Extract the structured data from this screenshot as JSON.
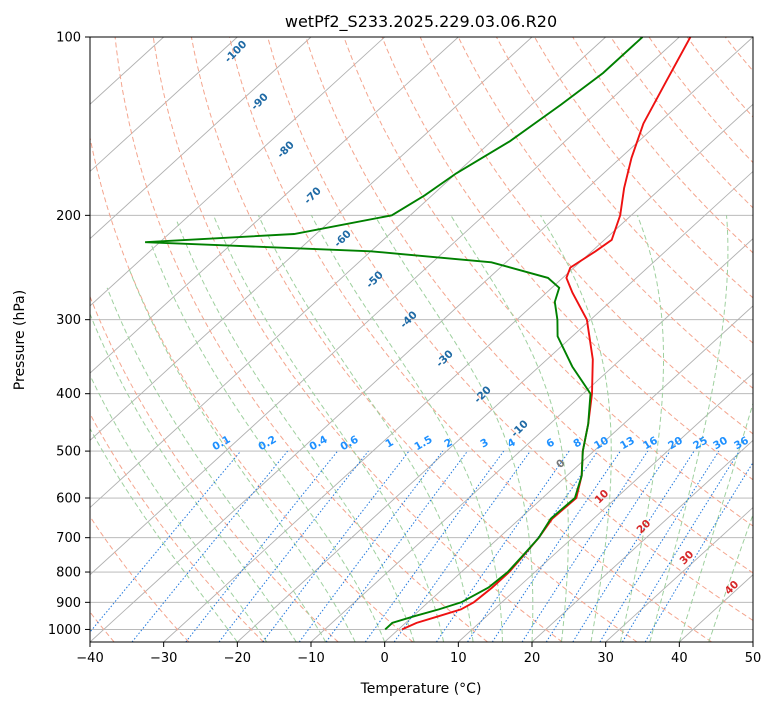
{
  "chart_data": {
    "type": "skew-t",
    "title": "wetPf2_S233.2025.229.03.06.R20",
    "xlabel": "Temperature (°C)",
    "ylabel": "Pressure (hPa)",
    "xlim": [
      -40,
      50
    ],
    "ylim": [
      1050,
      100
    ],
    "x_ticks": [
      -40,
      -30,
      -20,
      -10,
      0,
      10,
      20,
      30,
      40,
      50
    ],
    "y_ticks": [
      100,
      200,
      300,
      400,
      500,
      600,
      700,
      800,
      900,
      1000
    ],
    "x_tick_labels": [
      "−40",
      "−30",
      "−20",
      "−10",
      "0",
      "10",
      "20",
      "30",
      "40",
      "50"
    ],
    "y_tick_labels": [
      "100",
      "200",
      "300",
      "400",
      "500",
      "600",
      "700",
      "800",
      "900",
      "1000"
    ],
    "series": [
      {
        "name": "temperature",
        "color": "#ee1111",
        "points": [
          [
            1000,
            0.5
          ],
          [
            975,
            1.5
          ],
          [
            950,
            3.5
          ],
          [
            925,
            5.5
          ],
          [
            900,
            6.2
          ],
          [
            850,
            6.5
          ],
          [
            800,
            6.5
          ],
          [
            750,
            6.0
          ],
          [
            700,
            5.4
          ],
          [
            650,
            4.4
          ],
          [
            600,
            4.6
          ],
          [
            550,
            2.0
          ],
          [
            500,
            -1.5
          ],
          [
            450,
            -4.8
          ],
          [
            400,
            -8.8
          ],
          [
            350,
            -13.8
          ],
          [
            300,
            -20.5
          ],
          [
            270,
            -26.5
          ],
          [
            255,
            -29.5
          ],
          [
            245,
            -30.5
          ],
          [
            230,
            -29.5
          ],
          [
            220,
            -29.0
          ],
          [
            200,
            -31.5
          ],
          [
            180,
            -35.0
          ],
          [
            160,
            -38.5
          ],
          [
            140,
            -42.0
          ],
          [
            120,
            -45.0
          ],
          [
            100,
            -48.5
          ]
        ]
      },
      {
        "name": "dewpoint",
        "color": "#008000",
        "points": [
          [
            1000,
            -1.8
          ],
          [
            975,
            -1.8
          ],
          [
            950,
            0.2
          ],
          [
            925,
            2.5
          ],
          [
            900,
            4.5
          ],
          [
            850,
            6.0
          ],
          [
            800,
            6.3
          ],
          [
            750,
            5.9
          ],
          [
            700,
            5.4
          ],
          [
            650,
            4.2
          ],
          [
            600,
            4.4
          ],
          [
            550,
            2.0
          ],
          [
            500,
            -1.5
          ],
          [
            450,
            -4.8
          ],
          [
            400,
            -9.0
          ],
          [
            360,
            -15.5
          ],
          [
            320,
            -22.0
          ],
          [
            300,
            -24.5
          ],
          [
            280,
            -27.5
          ],
          [
            265,
            -29.0
          ],
          [
            255,
            -32.0
          ],
          [
            240,
            -42.0
          ],
          [
            230,
            -60.0
          ],
          [
            225,
            -80.0
          ],
          [
            222,
            -92.0
          ],
          [
            215,
            -73.0
          ],
          [
            200,
            -62.5
          ],
          [
            185,
            -61.0
          ],
          [
            170,
            -60.0
          ],
          [
            150,
            -57.5
          ],
          [
            130,
            -56.0
          ],
          [
            115,
            -55.0
          ],
          [
            100,
            -55.0
          ]
        ]
      }
    ],
    "dry_adiabats_C": [
      -100,
      -90,
      -80,
      -70,
      -60,
      -50,
      -40,
      -30,
      -20,
      -10,
      0,
      10,
      20,
      30,
      40
    ],
    "dry_adiabat_labels": [
      "-100",
      "-90",
      "-80",
      "-70",
      "-60",
      "-50",
      "-40",
      "-30",
      "-20",
      "-10"
    ],
    "moist_adiabat_labels": [
      "0",
      "10",
      "20",
      "30",
      "40"
    ],
    "mixing_ratios_gkg": [
      0.1,
      0.2,
      0.4,
      0.6,
      1,
      1.5,
      2,
      3,
      4,
      6,
      8,
      10,
      13,
      16,
      20,
      25,
      30,
      36
    ],
    "mixing_ratio_labels": [
      "0.1",
      "0.2",
      "0.4",
      "0.6",
      "1",
      "1.5",
      "2",
      "3",
      "4",
      "6",
      "8",
      "10",
      "13",
      "16",
      "20",
      "25",
      "30",
      "36"
    ],
    "colors": {
      "dry_adiabat": "#f4a58e",
      "moist_adiabat": "#9fd09f",
      "mixing_ratio": "#1f77dd",
      "dry_label": "#1f6aa5",
      "moist_label_zero": "#777777",
      "moist_label": "#d62728",
      "mixing_label": "#1e90ff",
      "grid": "#b0b0b0"
    }
  }
}
